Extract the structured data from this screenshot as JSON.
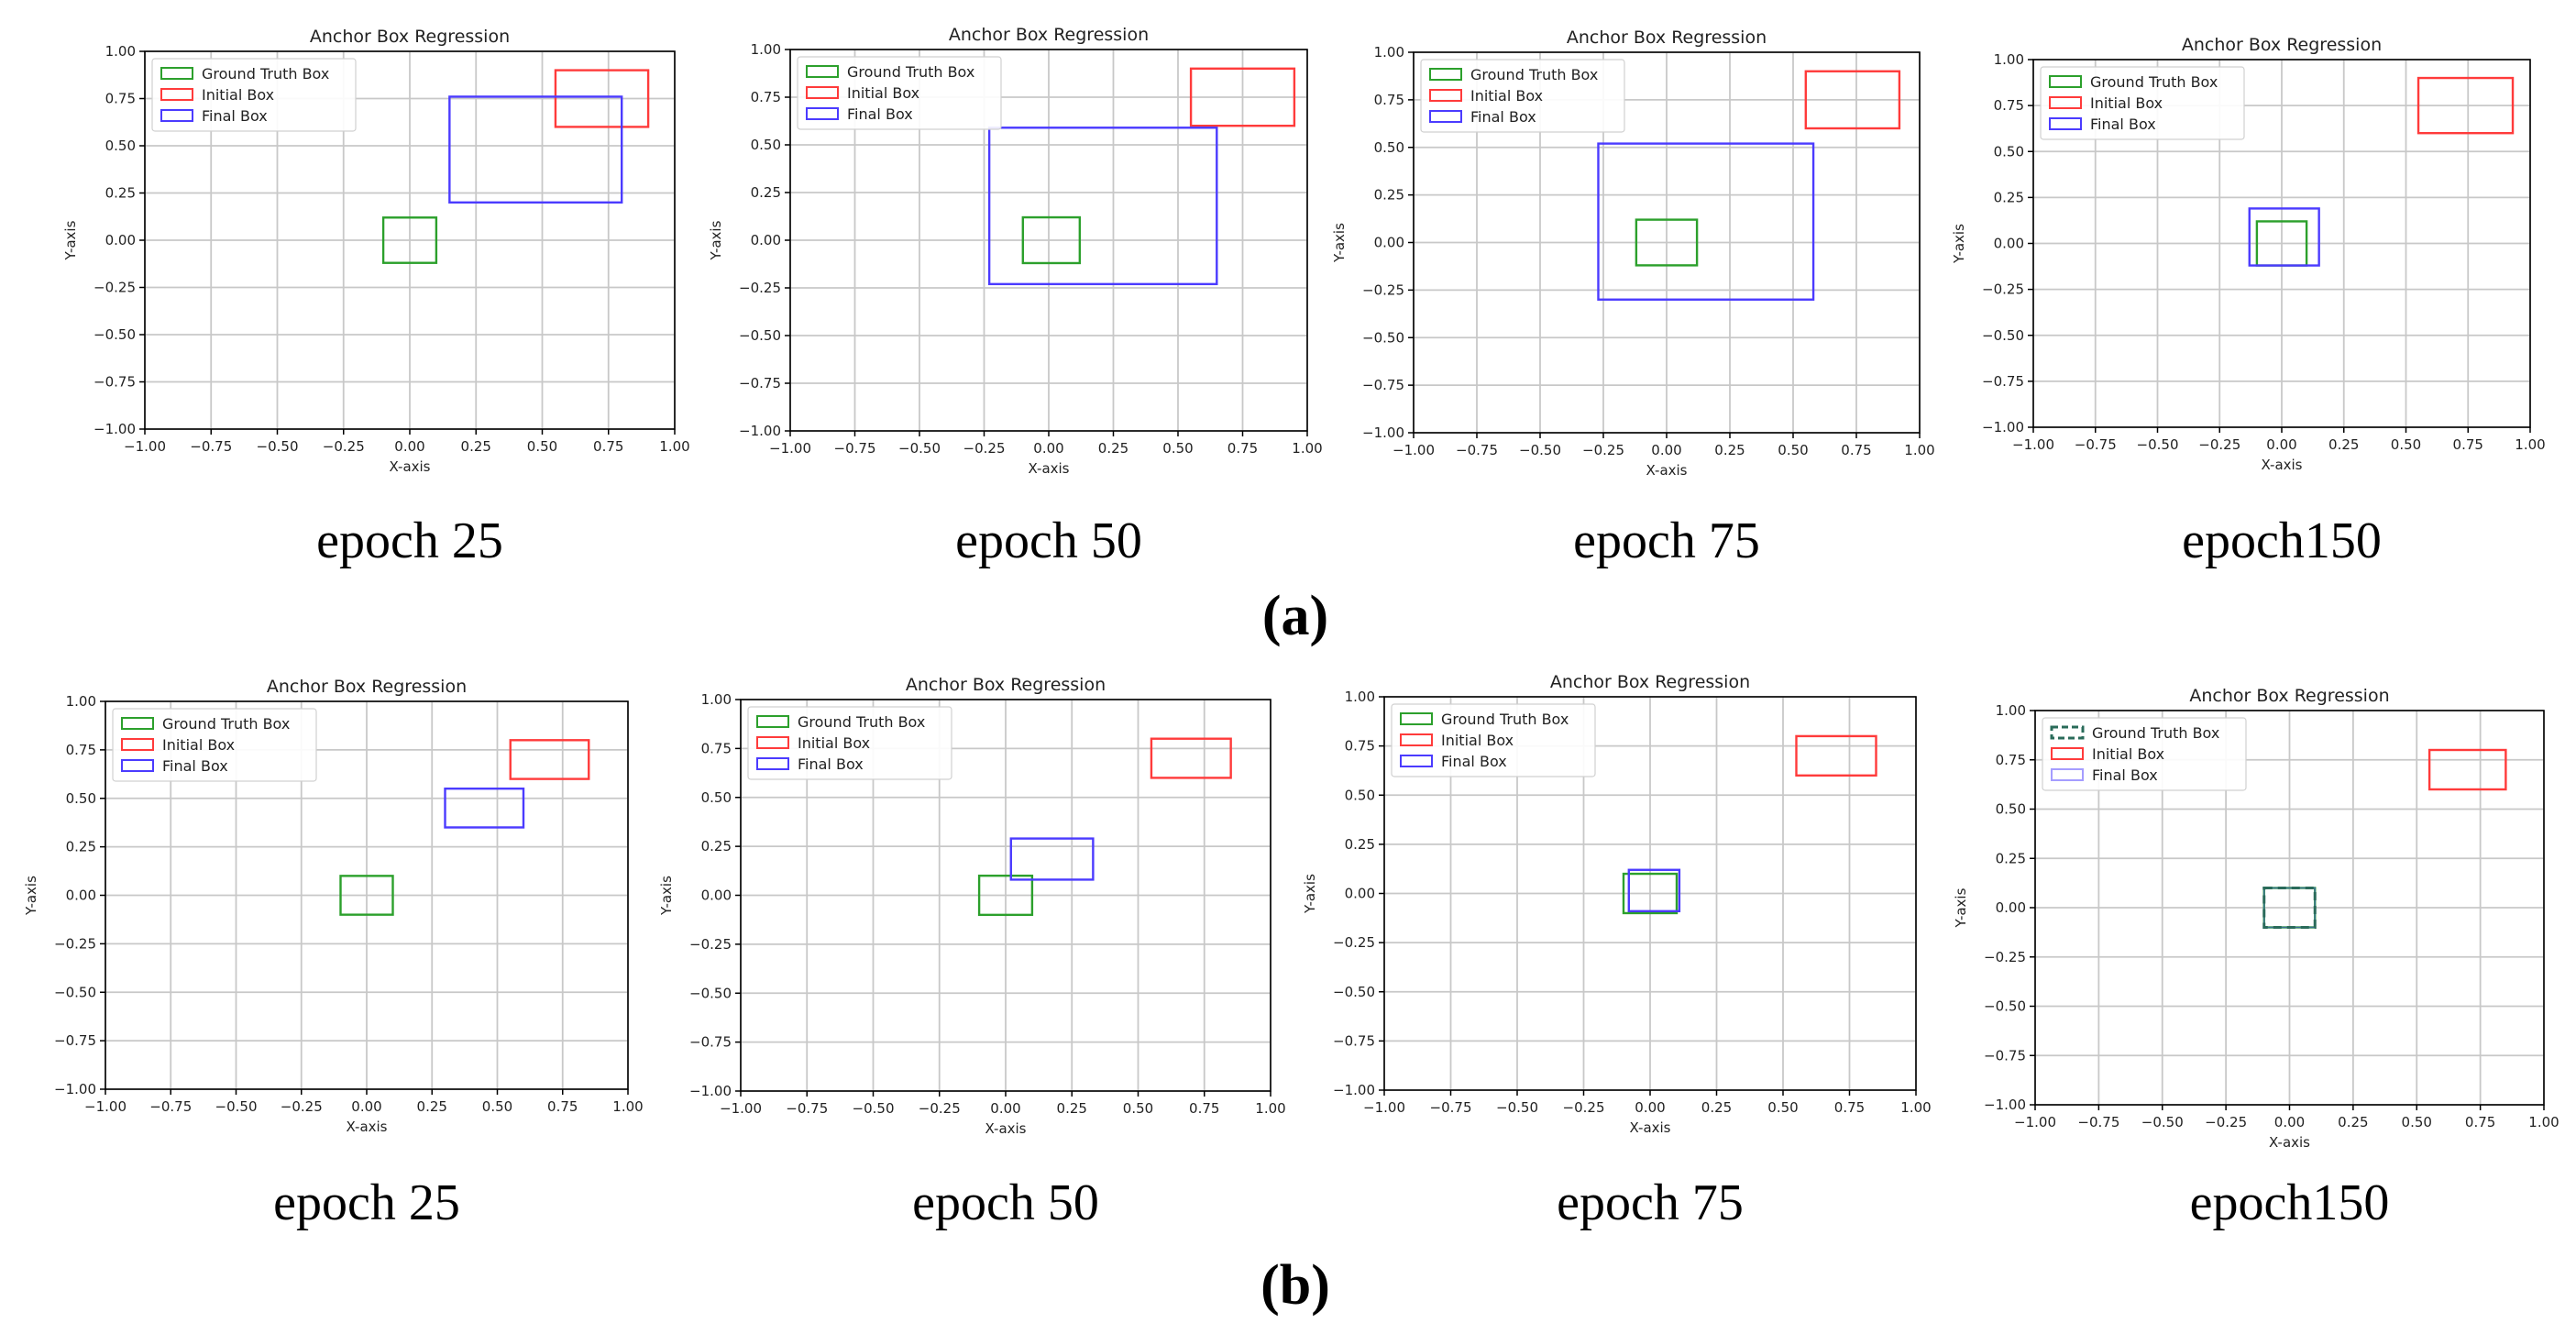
{
  "figure": {
    "row_labels": [
      "(a)",
      "(b)"
    ]
  },
  "colors": {
    "ground_truth": "#2ca02c",
    "initial": "#ff3b3b",
    "final": "#4b3bff",
    "grid": "#c8c8c8",
    "axis": "#000000"
  },
  "chart_data": [
    {
      "type": "box-regression",
      "row": "a",
      "panel_label": "epoch 25",
      "title": "Anchor Box Regression",
      "xlabel": "X-axis",
      "ylabel": "Y-axis",
      "xlim": [
        -1,
        1
      ],
      "ylim": [
        -1,
        1
      ],
      "ticks": [
        "-1.00",
        "-0.75",
        "-0.50",
        "-0.25",
        "0.00",
        "0.25",
        "0.50",
        "0.75",
        "1.00"
      ],
      "legend": [
        "Ground Truth Box",
        "Initial Box",
        "Final Box"
      ],
      "boxes": {
        "ground_truth": [
          -0.1,
          -0.12,
          0.1,
          0.12
        ],
        "initial": [
          0.55,
          0.6,
          0.9,
          0.9
        ],
        "final": [
          0.15,
          0.2,
          0.8,
          0.76
        ]
      }
    },
    {
      "type": "box-regression",
      "row": "a",
      "panel_label": "epoch 50",
      "title": "Anchor Box Regression",
      "xlabel": "X-axis",
      "ylabel": "Y-axis",
      "xlim": [
        -1,
        1
      ],
      "ylim": [
        -1,
        1
      ],
      "ticks": [
        "-1.00",
        "-0.75",
        "-0.50",
        "-0.25",
        "0.00",
        "0.25",
        "0.50",
        "0.75",
        "1.00"
      ],
      "legend": [
        "Ground Truth Box",
        "Initial Box",
        "Final Box"
      ],
      "boxes": {
        "ground_truth": [
          -0.1,
          -0.12,
          0.12,
          0.12
        ],
        "initial": [
          0.55,
          0.6,
          0.95,
          0.9
        ],
        "final": [
          -0.23,
          -0.23,
          0.65,
          0.59
        ]
      }
    },
    {
      "type": "box-regression",
      "row": "a",
      "panel_label": "epoch 75",
      "title": "Anchor Box Regression",
      "xlabel": "X-axis",
      "ylabel": "Y-axis",
      "xlim": [
        -1,
        1
      ],
      "ylim": [
        -1,
        1
      ],
      "ticks": [
        "-1.00",
        "-0.75",
        "-0.50",
        "-0.25",
        "0.00",
        "0.25",
        "0.50",
        "0.75",
        "1.00"
      ],
      "legend": [
        "Ground Truth Box",
        "Initial Box",
        "Final Box"
      ],
      "boxes": {
        "ground_truth": [
          -0.12,
          -0.12,
          0.12,
          0.12
        ],
        "initial": [
          0.55,
          0.6,
          0.92,
          0.9
        ],
        "final": [
          -0.27,
          -0.3,
          0.58,
          0.52
        ]
      }
    },
    {
      "type": "box-regression",
      "row": "a",
      "panel_label": "epoch150",
      "title": "Anchor Box Regression",
      "xlabel": "X-axis",
      "ylabel": "Y-axis",
      "xlim": [
        -1,
        1
      ],
      "ylim": [
        -1,
        1
      ],
      "ticks": [
        "-1.00",
        "-0.75",
        "-0.50",
        "-0.25",
        "0.00",
        "0.25",
        "0.50",
        "0.75",
        "1.00"
      ],
      "legend": [
        "Ground Truth Box",
        "Initial Box",
        "Final Box"
      ],
      "boxes": {
        "ground_truth": [
          -0.1,
          -0.12,
          0.1,
          0.12
        ],
        "initial": [
          0.55,
          0.6,
          0.93,
          0.9
        ],
        "final": [
          -0.13,
          -0.12,
          0.15,
          0.19
        ]
      }
    },
    {
      "type": "box-regression",
      "row": "b",
      "panel_label": "epoch 25",
      "title": "Anchor Box Regression",
      "xlabel": "X-axis",
      "ylabel": "Y-axis",
      "xlim": [
        -1,
        1
      ],
      "ylim": [
        -1,
        1
      ],
      "ticks": [
        "-1.00",
        "-0.75",
        "-0.50",
        "-0.25",
        "0.00",
        "0.25",
        "0.50",
        "0.75",
        "1.00"
      ],
      "legend": [
        "Ground Truth Box",
        "Initial Box",
        "Final Box"
      ],
      "boxes": {
        "ground_truth": [
          -0.1,
          -0.1,
          0.1,
          0.1
        ],
        "initial": [
          0.55,
          0.6,
          0.85,
          0.8
        ],
        "final": [
          0.3,
          0.35,
          0.6,
          0.55
        ]
      }
    },
    {
      "type": "box-regression",
      "row": "b",
      "panel_label": "epoch 50",
      "title": "Anchor Box Regression",
      "xlabel": "X-axis",
      "ylabel": "Y-axis",
      "xlim": [
        -1,
        1
      ],
      "ylim": [
        -1,
        1
      ],
      "ticks": [
        "-1.00",
        "-0.75",
        "-0.50",
        "-0.25",
        "0.00",
        "0.25",
        "0.50",
        "0.75",
        "1.00"
      ],
      "legend": [
        "Ground Truth Box",
        "Initial Box",
        "Final Box"
      ],
      "boxes": {
        "ground_truth": [
          -0.1,
          -0.1,
          0.1,
          0.1
        ],
        "initial": [
          0.55,
          0.6,
          0.85,
          0.8
        ],
        "final": [
          0.02,
          0.08,
          0.33,
          0.29
        ]
      }
    },
    {
      "type": "box-regression",
      "row": "b",
      "panel_label": "epoch 75",
      "title": "Anchor Box Regression",
      "xlabel": "X-axis",
      "ylabel": "Y-axis",
      "xlim": [
        -1,
        1
      ],
      "ylim": [
        -1,
        1
      ],
      "ticks": [
        "-1.00",
        "-0.75",
        "-0.50",
        "-0.25",
        "0.00",
        "0.25",
        "0.50",
        "0.75",
        "1.00"
      ],
      "legend": [
        "Ground Truth Box",
        "Initial Box",
        "Final Box"
      ],
      "boxes": {
        "ground_truth": [
          -0.1,
          -0.1,
          0.1,
          0.1
        ],
        "initial": [
          0.55,
          0.6,
          0.85,
          0.8
        ],
        "final": [
          -0.08,
          -0.09,
          0.11,
          0.12
        ]
      }
    },
    {
      "type": "box-regression",
      "row": "b",
      "panel_label": "epoch150",
      "title": "Anchor Box Regression",
      "xlabel": "X-axis",
      "ylabel": "Y-axis",
      "xlim": [
        -1,
        1
      ],
      "ylim": [
        -1,
        1
      ],
      "ticks": [
        "-1.00",
        "-0.75",
        "-0.50",
        "-0.25",
        "0.00",
        "0.25",
        "0.50",
        "0.75",
        "1.00"
      ],
      "legend": [
        "Ground Truth Box",
        "Initial Box",
        "Final Box"
      ],
      "ground_truth_style": "dashed",
      "boxes": {
        "ground_truth": [
          -0.1,
          -0.1,
          0.1,
          0.1
        ],
        "initial": [
          0.55,
          0.6,
          0.85,
          0.8
        ],
        "final": [
          -0.1,
          -0.1,
          0.1,
          0.1
        ]
      }
    }
  ]
}
